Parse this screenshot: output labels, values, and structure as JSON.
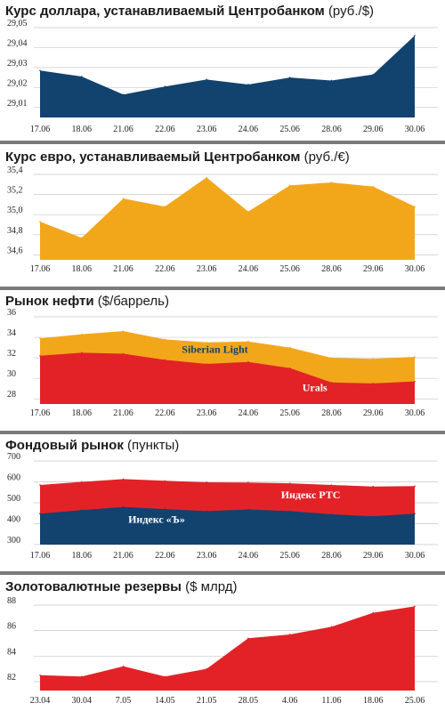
{
  "colors": {
    "navy": "#12426e",
    "orange": "#f2a71b",
    "red": "#e32228",
    "grid": "#c9c9c9",
    "divider": "#7a7a7a"
  },
  "chart_data": [
    {
      "type": "area",
      "title": "Курс доллара, устанавливаемый Центробанком",
      "unit": "(руб./$)",
      "categories": [
        "17.06",
        "18.06",
        "21.06",
        "22.06",
        "23.06",
        "24.06",
        "25.06",
        "28.06",
        "29.06",
        "30.06"
      ],
      "yticks": [
        "29,05",
        "29,04",
        "29,03",
        "29,02",
        "29,01"
      ],
      "ylim": [
        29.005,
        29.05
      ],
      "series": [
        {
          "name": "",
          "color": "#12426e",
          "values": [
            29.0285,
            29.0255,
            29.0165,
            29.0205,
            29.024,
            29.0215,
            29.025,
            29.0235,
            29.0265,
            29.046
          ]
        }
      ]
    },
    {
      "type": "area",
      "title": "Курс евро, устанавливаемый Центробанком",
      "unit": "(руб./€)",
      "categories": [
        "17.06",
        "18.06",
        "21.06",
        "22.06",
        "23.06",
        "24.06",
        "25.06",
        "28.06",
        "29.06",
        "30.06"
      ],
      "yticks": [
        "35,4",
        "35,2",
        "35,0",
        "34,8",
        "34,6"
      ],
      "ylim": [
        34.55,
        35.4
      ],
      "series": [
        {
          "name": "",
          "color": "#f2a71b",
          "values": [
            34.93,
            34.77,
            35.16,
            35.08,
            35.37,
            35.03,
            35.29,
            35.32,
            35.28,
            35.08
          ]
        }
      ]
    },
    {
      "type": "area",
      "title": "Рынок нефти",
      "unit": "($/баррель)",
      "categories": [
        "17.06",
        "18.06",
        "21.06",
        "22.06",
        "23.06",
        "24.06",
        "25.06",
        "28.06",
        "29.06",
        "30.06"
      ],
      "yticks": [
        "36",
        "34",
        "32",
        "30",
        "28"
      ],
      "ylim": [
        27.5,
        36
      ],
      "series": [
        {
          "name": "Siberian Light",
          "color": "#f2a71b",
          "label_color": "#12426e",
          "values": [
            33.9,
            34.3,
            34.6,
            33.8,
            33.5,
            33.6,
            33.0,
            32.0,
            31.9,
            32.1
          ]
        },
        {
          "name": "Urals",
          "color": "#e32228",
          "label_color": "#ffffff",
          "values": [
            32.2,
            32.5,
            32.4,
            31.8,
            31.4,
            31.6,
            31.0,
            29.6,
            29.5,
            29.7
          ]
        }
      ]
    },
    {
      "type": "area",
      "title": "Фондовый рынок",
      "unit": "(пункты)",
      "categories": [
        "17.06",
        "18.06",
        "21.06",
        "22.06",
        "23.06",
        "24.06",
        "25.06",
        "28.06",
        "29.06",
        "30.06"
      ],
      "yticks": [
        "700",
        "600",
        "500",
        "400",
        "300"
      ],
      "ylim": [
        300,
        700
      ],
      "series": [
        {
          "name": "Индекс РТС",
          "color": "#e32228",
          "label_color": "#ffffff",
          "values": [
            585,
            600,
            613,
            605,
            598,
            597,
            593,
            585,
            578,
            580
          ]
        },
        {
          "name": "Индекс «Ъ»",
          "color": "#12426e",
          "label_color": "#ffffff",
          "values": [
            448,
            465,
            480,
            470,
            460,
            468,
            460,
            445,
            435,
            448
          ]
        }
      ]
    },
    {
      "type": "area",
      "title": "Золотовалютные резервы",
      "unit": "($ млрд)",
      "categories": [
        "23.04",
        "30.04",
        "7.05",
        "14.05",
        "21.05",
        "28.05",
        "4.06",
        "11.06",
        "18.06",
        "25.06"
      ],
      "yticks": [
        "88",
        "86",
        "84",
        "82"
      ],
      "ylim": [
        81.3,
        88
      ],
      "series": [
        {
          "name": "",
          "color": "#e32228",
          "values": [
            82.5,
            82.4,
            83.2,
            82.4,
            83.0,
            85.4,
            85.7,
            86.3,
            87.4,
            87.9
          ]
        }
      ]
    }
  ]
}
